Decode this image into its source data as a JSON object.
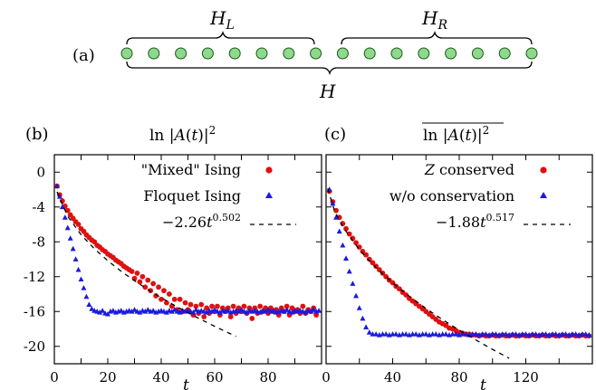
{
  "diagram": {
    "panel_label": "(a)",
    "left_label": "H_L",
    "right_label": "H_R",
    "total_label": "H",
    "site_count": 16,
    "site_fill": "#8ed98c",
    "site_stroke": "#1a5a1a"
  },
  "chart_data": [
    {
      "type": "scatter",
      "panel_label": "(b)",
      "title": "ln |A(t)|^2",
      "xlabel": "t",
      "ylabel": "",
      "xlim": [
        0,
        100
      ],
      "ylim": [
        -22,
        2
      ],
      "xticks": [
        "0",
        "20",
        "40",
        "60",
        "80"
      ],
      "yticks": [
        "0",
        "-4",
        "-8",
        "-12",
        "-16",
        "-20"
      ],
      "legend_position": "top-right",
      "series": [
        {
          "name": "\"Mixed\" Ising",
          "marker": "circle",
          "color": "#e01010",
          "x": [
            1,
            2,
            3,
            4,
            5,
            6,
            7,
            8,
            9,
            10,
            11,
            12,
            13,
            14,
            15,
            16,
            17,
            18,
            19,
            20,
            21,
            22,
            23,
            24,
            25,
            26,
            27,
            28,
            29,
            30,
            31,
            32,
            33,
            34,
            35,
            36,
            37,
            38,
            39,
            40,
            41,
            42,
            43,
            44,
            45,
            46,
            47,
            48,
            49,
            50,
            51,
            52,
            53,
            54,
            55,
            56,
            57,
            58,
            59,
            60,
            61,
            62,
            63,
            64,
            65,
            66,
            67,
            68,
            69,
            70,
            71,
            72,
            73,
            74,
            75,
            76,
            77,
            78,
            79,
            80,
            81,
            82,
            83,
            84,
            85,
            86,
            87,
            88,
            89,
            90,
            91,
            92,
            93,
            94,
            95,
            96,
            97,
            98
          ],
          "y": [
            -1.6,
            -2.6,
            -3.3,
            -3.9,
            -4.4,
            -4.9,
            -5.3,
            -5.7,
            -6.0,
            -6.5,
            -6.8,
            -7.2,
            -7.5,
            -7.8,
            -8.0,
            -8.4,
            -8.6,
            -8.9,
            -9.1,
            -9.4,
            -9.6,
            -9.8,
            -10.1,
            -10.3,
            -10.5,
            -10.8,
            -11.0,
            -11.2,
            -11.4,
            -12.2,
            -11.6,
            -12.6,
            -12.0,
            -13.2,
            -12.4,
            -13.6,
            -12.8,
            -14.2,
            -13.2,
            -14.6,
            -13.6,
            -15.0,
            -14.0,
            -15.4,
            -14.6,
            -15.8,
            -14.6,
            -16.0,
            -15.0,
            -15.8,
            -15.2,
            -16.4,
            -15.4,
            -16.2,
            -15.2,
            -16.6,
            -15.6,
            -16.2,
            -15.4,
            -16.0,
            -15.4,
            -16.4,
            -15.6,
            -16.0,
            -15.6,
            -16.6,
            -15.4,
            -16.2,
            -15.6,
            -16.0,
            -15.4,
            -16.2,
            -15.6,
            -16.8,
            -15.6,
            -16.2,
            -15.4,
            -16.0,
            -15.6,
            -16.2,
            -15.6,
            -16.0,
            -15.8,
            -16.4,
            -15.6,
            -16.0,
            -15.4,
            -16.4,
            -15.6,
            -16.0,
            -15.8,
            -16.2,
            -15.4,
            -16.2,
            -15.8,
            -16.0,
            -15.6,
            -16.4
          ]
        },
        {
          "name": "Floquet Ising",
          "marker": "triangle",
          "color": "#1a1ae0",
          "x": [
            1,
            2,
            3,
            4,
            5,
            6,
            7,
            8,
            9,
            10,
            11,
            12,
            13,
            14,
            15,
            16,
            17,
            18,
            19,
            20,
            21,
            22,
            23,
            24,
            25,
            26,
            27,
            28,
            29,
            30,
            31,
            32,
            33,
            34,
            35,
            36,
            37,
            38,
            39,
            40,
            41,
            42,
            43,
            44,
            45,
            46,
            47,
            48,
            49,
            50,
            51,
            52,
            53,
            54,
            55,
            56,
            57,
            58,
            59,
            60,
            61,
            62,
            63,
            64,
            65,
            66,
            67,
            68,
            69,
            70,
            71,
            72,
            73,
            74,
            75,
            76,
            77,
            78,
            79,
            80,
            81,
            82,
            83,
            84,
            85,
            86,
            87,
            88,
            89,
            90,
            91,
            92,
            93,
            94,
            95,
            96,
            97,
            98,
            99
          ],
          "y": [
            -1.6,
            -2.8,
            -4.0,
            -5.2,
            -6.4,
            -7.6,
            -8.8,
            -10.0,
            -11.2,
            -12.3,
            -13.3,
            -14.3,
            -15.2,
            -15.7,
            -15.9,
            -16.0,
            -16.1,
            -15.9,
            -16.2,
            -16.3,
            -16.0,
            -15.9,
            -16.1,
            -16.0,
            -15.9,
            -16.1,
            -16.0,
            -15.9,
            -16.0,
            -15.8,
            -16.0,
            -16.1,
            -15.9,
            -16.0,
            -15.8,
            -16.0,
            -15.9,
            -16.1,
            -16.0,
            -15.9,
            -16.0,
            -16.1,
            -15.9,
            -16.0,
            -15.8,
            -16.0,
            -16.1,
            -15.9,
            -16.0,
            -15.9,
            -16.0,
            -16.1,
            -15.8,
            -16.0,
            -15.9,
            -16.0,
            -16.1,
            -15.9,
            -16.0,
            -15.8,
            -16.0,
            -16.1,
            -15.9,
            -16.0,
            -15.9,
            -16.1,
            -16.0,
            -15.9,
            -16.0,
            -15.8,
            -16.0,
            -16.1,
            -15.9,
            -16.0,
            -15.9,
            -16.0,
            -16.1,
            -15.9,
            -16.0,
            -15.8,
            -16.0,
            -15.9,
            -16.1,
            -16.0,
            -15.9,
            -16.0,
            -15.8,
            -16.0,
            -16.1,
            -15.9,
            -16.0,
            -15.9,
            -16.0,
            -16.1,
            -15.9,
            -16.0,
            -15.8,
            -16.0,
            -15.9
          ]
        },
        {
          "name": "−2.26t^0.502",
          "marker": "dashed-line",
          "color": "#000000",
          "x": [
            1,
            5,
            10,
            15,
            20,
            25,
            30,
            35,
            40,
            45,
            50,
            55,
            60,
            65,
            68
          ],
          "y": [
            -2.26,
            -5.07,
            -7.18,
            -8.8,
            -10.17,
            -11.38,
            -12.47,
            -13.48,
            -14.42,
            -15.3,
            -16.14,
            -16.94,
            -17.7,
            -18.43,
            -18.86
          ]
        }
      ]
    },
    {
      "type": "scatter",
      "panel_label": "(c)",
      "title": "overline(ln |A(t)|^2)",
      "xlabel": "t",
      "ylabel": "",
      "xlim": [
        0,
        160
      ],
      "ylim": [
        -22,
        2
      ],
      "xticks": [
        "0",
        "40",
        "80",
        "120"
      ],
      "yticks": [],
      "legend_position": "top-right",
      "series": [
        {
          "name": "Z conserved",
          "marker": "circle",
          "color": "#e01010",
          "x": [
            2,
            4,
            6,
            8,
            10,
            12,
            14,
            16,
            18,
            20,
            22,
            24,
            26,
            28,
            30,
            32,
            34,
            36,
            38,
            40,
            42,
            44,
            46,
            48,
            50,
            52,
            54,
            56,
            58,
            60,
            62,
            64,
            66,
            68,
            70,
            72,
            74,
            76,
            78,
            80,
            82,
            84,
            86,
            88,
            90,
            92,
            94,
            96,
            98,
            100,
            102,
            104,
            106,
            108,
            110,
            112,
            114,
            116,
            118,
            120,
            122,
            124,
            126,
            128,
            130,
            132,
            134,
            136,
            138,
            140,
            142,
            144,
            146,
            148,
            150,
            152,
            154,
            156,
            158
          ],
          "y": [
            -2.2,
            -3.4,
            -4.4,
            -5.2,
            -5.9,
            -6.5,
            -7.1,
            -7.6,
            -8.1,
            -8.6,
            -9.1,
            -9.5,
            -10.0,
            -10.4,
            -10.8,
            -11.2,
            -11.6,
            -12.0,
            -12.4,
            -12.7,
            -13.1,
            -13.4,
            -13.8,
            -14.1,
            -14.5,
            -14.8,
            -15.1,
            -15.4,
            -15.7,
            -16.0,
            -16.3,
            -16.6,
            -16.9,
            -17.2,
            -17.4,
            -17.6,
            -17.9,
            -18.0,
            -18.2,
            -18.4,
            -18.5,
            -18.6,
            -18.6,
            -18.7,
            -18.7,
            -18.8,
            -18.7,
            -18.8,
            -18.8,
            -18.7,
            -18.8,
            -18.8,
            -18.7,
            -18.8,
            -18.8,
            -18.7,
            -18.8,
            -18.8,
            -18.7,
            -18.8,
            -18.8,
            -18.7,
            -18.8,
            -18.8,
            -18.7,
            -18.8,
            -18.8,
            -18.7,
            -18.8,
            -18.8,
            -18.7,
            -18.8,
            -18.8,
            -18.7,
            -18.8,
            -18.8,
            -18.7,
            -18.8,
            -18.8
          ]
        },
        {
          "name": "w/o conservation",
          "marker": "triangle",
          "color": "#1a1ae0",
          "x": [
            2,
            4,
            6,
            8,
            10,
            12,
            14,
            16,
            18,
            20,
            22,
            24,
            26,
            28,
            30,
            32,
            34,
            36,
            38,
            40,
            42,
            44,
            46,
            48,
            50,
            52,
            54,
            56,
            58,
            60,
            62,
            64,
            66,
            68,
            70,
            72,
            74,
            76,
            78,
            80,
            82,
            84,
            86,
            88,
            90,
            92,
            94,
            96,
            98,
            100,
            102,
            104,
            106,
            108,
            110,
            112,
            114,
            116,
            118,
            120,
            122,
            124,
            126,
            128,
            130,
            132,
            134,
            136,
            138,
            140,
            142,
            144,
            146,
            148,
            150,
            152,
            154,
            156,
            158
          ],
          "y": [
            -2.0,
            -3.6,
            -5.2,
            -6.8,
            -8.4,
            -9.9,
            -11.4,
            -12.8,
            -14.2,
            -15.6,
            -16.8,
            -17.8,
            -18.4,
            -18.6,
            -18.6,
            -18.7,
            -18.6,
            -18.6,
            -18.7,
            -18.6,
            -18.6,
            -18.7,
            -18.6,
            -18.6,
            -18.7,
            -18.6,
            -18.6,
            -18.7,
            -18.6,
            -18.6,
            -18.7,
            -18.6,
            -18.6,
            -18.7,
            -18.6,
            -18.6,
            -18.7,
            -18.6,
            -18.6,
            -18.7,
            -18.6,
            -18.6,
            -18.7,
            -18.6,
            -18.6,
            -18.7,
            -18.6,
            -18.6,
            -18.7,
            -18.6,
            -18.6,
            -18.7,
            -18.6,
            -18.6,
            -18.7,
            -18.6,
            -18.6,
            -18.7,
            -18.6,
            -18.6,
            -18.7,
            -18.6,
            -18.6,
            -18.7,
            -18.6,
            -18.6,
            -18.7,
            -18.6,
            -18.6,
            -18.7,
            -18.6,
            -18.6,
            -18.7,
            -18.6,
            -18.6,
            -18.7,
            -18.6,
            -18.6,
            -18.7
          ]
        },
        {
          "name": "−1.88t^0.517",
          "marker": "dashed-line",
          "color": "#000000",
          "x": [
            1,
            5,
            10,
            20,
            30,
            40,
            50,
            60,
            70,
            80,
            90,
            100,
            110
          ],
          "y": [
            -1.88,
            -4.4,
            -6.25,
            -8.92,
            -10.97,
            -12.71,
            -14.25,
            -15.65,
            -16.94,
            -18.14,
            -19.27,
            -20.35,
            -21.37
          ]
        }
      ]
    }
  ]
}
